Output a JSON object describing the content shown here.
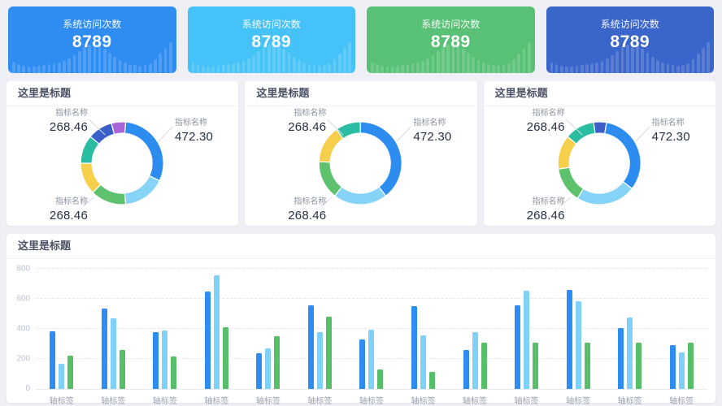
{
  "page": {
    "background": "#eef0f5"
  },
  "stat_cards": [
    {
      "label": "系统访问次数",
      "value": "8789",
      "color": "#2f8df2"
    },
    {
      "label": "系统访问次数",
      "value": "8789",
      "color": "#45c2f7"
    },
    {
      "label": "系统访问次数",
      "value": "8789",
      "color": "#58c175"
    },
    {
      "label": "系统访问次数",
      "value": "8789",
      "color": "#3a66cb"
    }
  ],
  "donut_cards": [
    {
      "title": "这里是标题",
      "callouts": {
        "top_left": {
          "name": "指标名称",
          "value": "268.46"
        },
        "right": {
          "name": "指标名称",
          "value": "472.30"
        },
        "bottom_left": {
          "name": "指标名称",
          "value": "268.46"
        }
      }
    },
    {
      "title": "这里是标题",
      "callouts": {
        "top_left": {
          "name": "指标名称",
          "value": "268.46"
        },
        "right": {
          "name": "指标名称",
          "value": "472.30"
        },
        "bottom_left": {
          "name": "指标名称",
          "value": "268.46"
        }
      }
    },
    {
      "title": "这里是标题",
      "callouts": {
        "top_left": {
          "name": "指标名称",
          "value": "268.46"
        },
        "right": {
          "name": "指标名称",
          "value": "472.30"
        },
        "bottom_left": {
          "name": "指标名称",
          "value": "268.46"
        }
      }
    }
  ],
  "bar_card": {
    "title": "这里是标题"
  },
  "chart_data": [
    {
      "type": "pie",
      "title": "这里是标题",
      "labeled_values": [
        268.46,
        472.3,
        268.46
      ],
      "segments": [
        {
          "color": "#2d8cf0",
          "start": 5,
          "end": 115
        },
        {
          "color": "#85d3f6",
          "start": 115,
          "end": 175
        },
        {
          "color": "#5dc16d",
          "start": 175,
          "end": 225
        },
        {
          "color": "#f6d04c",
          "start": 225,
          "end": 270
        },
        {
          "color": "#2abda1",
          "start": 270,
          "end": 310
        },
        {
          "color": "#3b5fc9",
          "start": 310,
          "end": 345
        },
        {
          "color": "#a864d9",
          "start": 345,
          "end": 365
        }
      ]
    },
    {
      "type": "pie",
      "title": "这里是标题",
      "labeled_values": [
        268.46,
        472.3,
        268.46
      ],
      "segments": [
        {
          "color": "#2d8cf0",
          "start": 0,
          "end": 142
        },
        {
          "color": "#85d3f6",
          "start": 142,
          "end": 218
        },
        {
          "color": "#5dc16d",
          "start": 218,
          "end": 272
        },
        {
          "color": "#f6d04c",
          "start": 272,
          "end": 325
        },
        {
          "color": "#2abda1",
          "start": 325,
          "end": 360
        }
      ]
    },
    {
      "type": "pie",
      "title": "这里是标题",
      "labeled_values": [
        268.46,
        472.3,
        268.46
      ],
      "segments": [
        {
          "color": "#2d8cf0",
          "start": 10,
          "end": 128
        },
        {
          "color": "#85d3f6",
          "start": 128,
          "end": 212
        },
        {
          "color": "#5dc16d",
          "start": 212,
          "end": 262
        },
        {
          "color": "#f6d04c",
          "start": 262,
          "end": 310
        },
        {
          "color": "#2abda1",
          "start": 310,
          "end": 352
        },
        {
          "color": "#3b5fc9",
          "start": 352,
          "end": 370
        }
      ]
    },
    {
      "type": "bar",
      "title": "这里是标题",
      "categories": [
        "轴标签",
        "轴标签",
        "轴标签",
        "轴标签",
        "轴标签",
        "轴标签",
        "轴标签",
        "轴标签",
        "轴标签",
        "轴标签",
        "轴标签",
        "轴标签",
        "轴标签"
      ],
      "ylim": [
        0,
        800
      ],
      "yticks": [
        0,
        200,
        400,
        600,
        800
      ],
      "grid": "dashed-horizontal",
      "legend": "none",
      "series": [
        {
          "name": "blue",
          "color": "#2e8df2",
          "values": [
            385,
            535,
            380,
            648,
            240,
            558,
            330,
            550,
            262,
            555,
            658,
            403,
            291
          ]
        },
        {
          "name": "light-blue",
          "color": "#7fd1f8",
          "values": [
            170,
            470,
            388,
            755,
            270,
            380,
            395,
            357,
            380,
            655,
            583,
            476,
            241
          ]
        },
        {
          "name": "green",
          "color": "#57bf6a",
          "values": [
            220,
            260,
            215,
            410,
            350,
            480,
            128,
            113,
            310,
            310,
            310,
            310,
            310
          ]
        }
      ]
    }
  ]
}
